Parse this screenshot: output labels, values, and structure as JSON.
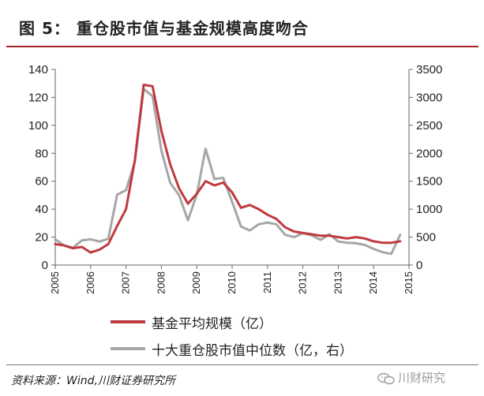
{
  "figure": {
    "title": "图  5：   重仓股市值与基金规模高度吻合",
    "source": "资料来源：Wind,川财证券研究所",
    "watermark": "川财研究"
  },
  "colors": {
    "fund": "#c0393e",
    "stock": "#a6a6a6",
    "accent": "#a8272c"
  },
  "chart_data": {
    "type": "line",
    "x_ticks": [
      "2005",
      "2006",
      "2007",
      "2008",
      "2009",
      "2010",
      "2011",
      "2012",
      "2013",
      "2014",
      "2015"
    ],
    "x_range": [
      2005,
      2015
    ],
    "y_left": {
      "range": [
        0,
        140
      ],
      "ticks": [
        "0",
        "20",
        "40",
        "60",
        "80",
        "100",
        "120",
        "140"
      ]
    },
    "y_right": {
      "range": [
        0,
        3500
      ],
      "ticks": [
        "0",
        "500",
        "1000",
        "1500",
        "2000",
        "2500",
        "3000",
        "3500"
      ]
    },
    "grid": false,
    "legend_position": "bottom",
    "series": [
      {
        "name": "基金平均规模（亿）",
        "axis": "left",
        "x": [
          2005.0,
          2005.25,
          2005.5,
          2005.75,
          2006.0,
          2006.25,
          2006.5,
          2006.75,
          2007.0,
          2007.25,
          2007.5,
          2007.75,
          2008.0,
          2008.25,
          2008.5,
          2008.75,
          2009.0,
          2009.25,
          2009.5,
          2009.75,
          2010.0,
          2010.25,
          2010.5,
          2010.75,
          2011.0,
          2011.25,
          2011.5,
          2011.75,
          2012.0,
          2012.25,
          2012.5,
          2012.75,
          2013.0,
          2013.25,
          2013.5,
          2013.75,
          2014.0,
          2014.25,
          2014.5,
          2014.75
        ],
        "values": [
          15,
          14,
          12,
          13,
          9,
          11,
          15,
          28,
          40,
          75,
          129,
          128,
          96,
          72,
          55,
          44,
          51,
          60,
          57,
          59,
          52,
          41,
          43,
          40,
          36,
          33,
          27,
          24,
          23,
          22,
          21,
          21,
          20,
          19,
          20,
          19,
          17,
          16,
          16,
          17
        ]
      },
      {
        "name": "十大重仓股市值中位数（亿，右）",
        "axis": "right",
        "x": [
          2005.0,
          2005.25,
          2005.5,
          2005.75,
          2006.0,
          2006.25,
          2006.5,
          2006.75,
          2007.0,
          2007.25,
          2007.5,
          2007.75,
          2008.0,
          2008.25,
          2008.5,
          2008.75,
          2009.0,
          2009.25,
          2009.5,
          2009.75,
          2010.0,
          2010.25,
          2010.5,
          2010.75,
          2011.0,
          2011.25,
          2011.5,
          2011.75,
          2012.0,
          2012.25,
          2012.5,
          2012.75,
          2013.0,
          2013.25,
          2013.5,
          2013.75,
          2014.0,
          2014.25,
          2014.5,
          2014.75
        ],
        "values": [
          460,
          350,
          310,
          440,
          460,
          420,
          470,
          1260,
          1340,
          1850,
          3150,
          3020,
          2050,
          1470,
          1250,
          800,
          1260,
          2080,
          1540,
          1560,
          1130,
          690,
          620,
          730,
          760,
          730,
          540,
          500,
          570,
          530,
          450,
          550,
          420,
          400,
          390,
          360,
          290,
          230,
          200,
          540
        ]
      }
    ]
  }
}
